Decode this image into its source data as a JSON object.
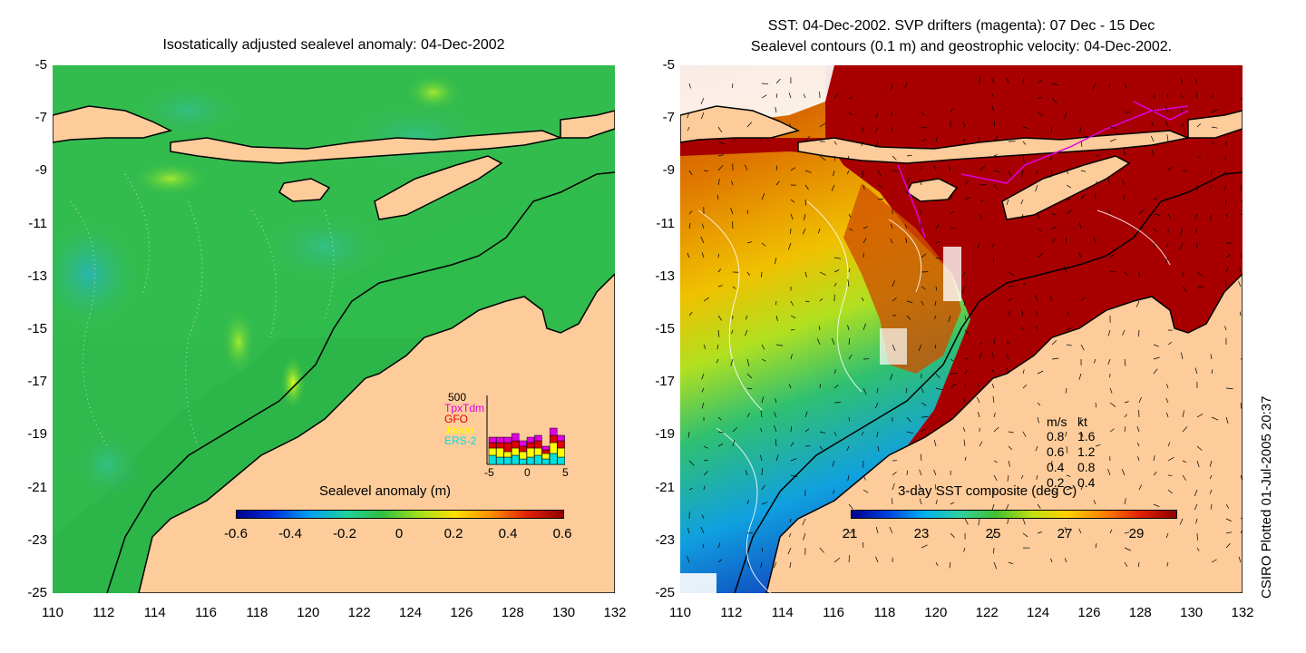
{
  "left_panel": {
    "title": "Isostatically adjusted sealevel anomaly: 04-Dec-2002",
    "colorbar": {
      "label": "Sealevel anomaly (m)",
      "ticks": [
        "-0.6",
        "-0.4",
        "-0.2",
        "0",
        "0.2",
        "0.4",
        "0.6"
      ]
    },
    "inset": {
      "ymax_label": "500",
      "legend": [
        {
          "name": "TpxTdm",
          "color": "#e000e0"
        },
        {
          "name": "GFO",
          "color": "#e00000"
        },
        {
          "name": "Jason",
          "color": "#ffff00"
        },
        {
          "name": "ERS-2",
          "color": "#00e0e0"
        }
      ],
      "xticks": [
        "-5",
        "0",
        "5"
      ]
    }
  },
  "right_panel": {
    "title_line1": "SST: 04-Dec-2002. SVP drifters (magenta): 07 Dec - 15 Dec",
    "title_line2": "Sealevel contours (0.1 m) and geostrophic velocity: 04-Dec-2002.",
    "colorbar": {
      "label": "3-day SST composite (deg C)",
      "ticks": [
        "21",
        "23",
        "25",
        "27",
        "29"
      ]
    },
    "velocity_scale": {
      "header_ms": "m/s",
      "header_kt": "kt",
      "rows": [
        {
          "ms": "0.8",
          "kt": "1.6"
        },
        {
          "ms": "0.6",
          "kt": "1.2"
        },
        {
          "ms": "0.4",
          "kt": "0.8"
        },
        {
          "ms": "0.2",
          "kt": "0.4"
        }
      ]
    }
  },
  "axes": {
    "y_ticks": [
      "-5",
      "-7",
      "-9",
      "-11",
      "-13",
      "-15",
      "-17",
      "-19",
      "-21",
      "-23",
      "-25"
    ],
    "x_ticks": [
      "110",
      "112",
      "114",
      "116",
      "118",
      "120",
      "122",
      "124",
      "126",
      "128",
      "130",
      "132"
    ]
  },
  "footer": "CSIRO Plotted 01-Jul-2005 20:37",
  "colors": {
    "land": "#fdcc9a",
    "sla_base": "#2cb64a",
    "sst_warm": "#a80000"
  }
}
